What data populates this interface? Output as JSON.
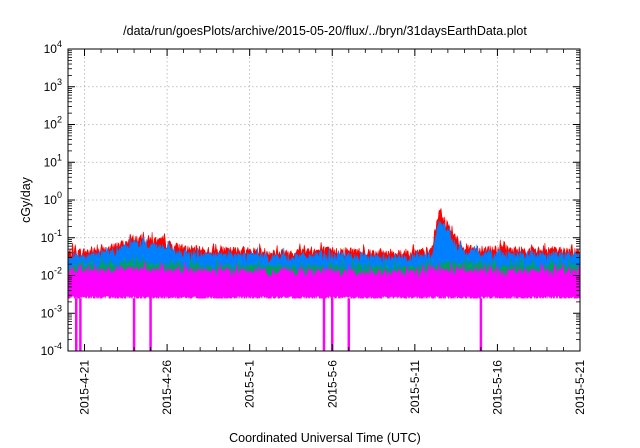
{
  "chart_data": {
    "type": "area",
    "title": "/data/run/goesPlots/archive/2015-05-20/flux/../bryn/31daysEarthData.plot",
    "xlabel": "Coordinated Universal Time (UTC)",
    "ylabel": "cGy/day",
    "yscale": "log",
    "ylim": [
      0.0001,
      10000
    ],
    "xlim": [
      "2015-04-20",
      "2015-05-21"
    ],
    "grid": true,
    "y_ticks": [
      {
        "value": 0.0001,
        "base": "10",
        "exp": "-4"
      },
      {
        "value": 0.001,
        "base": "10",
        "exp": "-3"
      },
      {
        "value": 0.01,
        "base": "10",
        "exp": "-2"
      },
      {
        "value": 0.1,
        "base": "10",
        "exp": "-1"
      },
      {
        "value": 1,
        "base": "10",
        "exp": "0"
      },
      {
        "value": 10,
        "base": "10",
        "exp": "1"
      },
      {
        "value": 100,
        "base": "10",
        "exp": "2"
      },
      {
        "value": 1000,
        "base": "10",
        "exp": "3"
      },
      {
        "value": 10000,
        "base": "10",
        "exp": "4"
      }
    ],
    "x_ticks": [
      {
        "date": "2015-04-21",
        "label": "2015-4-21"
      },
      {
        "date": "2015-04-26",
        "label": "2015-4-26"
      },
      {
        "date": "2015-05-01",
        "label": "2015-5-1"
      },
      {
        "date": "2015-05-06",
        "label": "2015-5-6"
      },
      {
        "date": "2015-05-11",
        "label": "2015-5-11"
      },
      {
        "date": "2015-05-16",
        "label": "2015-5-16"
      },
      {
        "date": "2015-05-21",
        "label": "2015-5-21"
      }
    ],
    "x_minor_ticks": [
      "2015-04-20",
      "2015-04-22",
      "2015-04-23",
      "2015-04-24",
      "2015-04-25",
      "2015-04-27",
      "2015-04-28",
      "2015-04-29",
      "2015-04-30",
      "2015-05-02",
      "2015-05-03",
      "2015-05-04",
      "2015-05-05",
      "2015-05-07",
      "2015-05-08",
      "2015-05-09",
      "2015-05-10",
      "2015-05-12",
      "2015-05-13",
      "2015-05-14",
      "2015-05-15",
      "2015-05-17",
      "2015-05-18",
      "2015-05-19",
      "2015-05-20"
    ],
    "series": [
      {
        "color": "#ff0000",
        "x": [
          "2015-04-20",
          "2015-04-22",
          "2015-04-23",
          "2015-04-24",
          "2015-04-25",
          "2015-04-26",
          "2015-04-27",
          "2015-04-29",
          "2015-05-01",
          "2015-05-03",
          "2015-05-05",
          "2015-05-07",
          "2015-05-09",
          "2015-05-11",
          "2015-05-12",
          "2015-05-12 12:00",
          "2015-05-13",
          "2015-05-13 12:00",
          "2015-05-14",
          "2015-05-16",
          "2015-05-18",
          "2015-05-21"
        ],
        "y": [
          0.04,
          0.045,
          0.06,
          0.095,
          0.09,
          0.07,
          0.05,
          0.045,
          0.045,
          0.04,
          0.045,
          0.045,
          0.04,
          0.04,
          0.045,
          0.5,
          0.2,
          0.09,
          0.055,
          0.05,
          0.045,
          0.045
        ]
      },
      {
        "color": "#0080ff",
        "x": [
          "2015-04-20",
          "2015-04-22",
          "2015-04-23",
          "2015-04-24",
          "2015-04-25",
          "2015-04-26",
          "2015-04-27",
          "2015-04-29",
          "2015-05-01",
          "2015-05-03",
          "2015-05-05",
          "2015-05-07",
          "2015-05-09",
          "2015-05-11",
          "2015-05-12",
          "2015-05-12 12:00",
          "2015-05-13",
          "2015-05-13 12:00",
          "2015-05-14",
          "2015-05-16",
          "2015-05-18",
          "2015-05-21"
        ],
        "y": [
          0.03,
          0.035,
          0.045,
          0.07,
          0.065,
          0.05,
          0.035,
          0.033,
          0.033,
          0.03,
          0.033,
          0.032,
          0.03,
          0.03,
          0.033,
          0.3,
          0.14,
          0.06,
          0.04,
          0.037,
          0.034,
          0.034
        ]
      },
      {
        "color": "#00a060",
        "x": [
          "2015-04-20",
          "2015-04-24",
          "2015-04-26",
          "2015-05-01",
          "2015-05-06",
          "2015-05-11",
          "2015-05-13",
          "2015-05-16",
          "2015-05-21"
        ],
        "y": [
          0.016,
          0.02,
          0.018,
          0.016,
          0.016,
          0.015,
          0.02,
          0.017,
          0.017
        ]
      },
      {
        "color": "#ff00ff",
        "x": [
          "2015-04-20",
          "2015-04-24",
          "2015-04-26",
          "2015-05-01",
          "2015-05-06",
          "2015-05-11",
          "2015-05-13",
          "2015-05-16",
          "2015-05-21"
        ],
        "y": [
          0.012,
          0.014,
          0.013,
          0.012,
          0.012,
          0.011,
          0.013,
          0.012,
          0.012
        ]
      }
    ],
    "baseline": 0.0025,
    "magenta_dropouts": [
      "2015-04-20 12:00",
      "2015-04-20 18:00",
      "2015-04-24",
      "2015-04-25",
      "2015-05-05 12:00",
      "2015-05-06",
      "2015-05-07",
      "2015-05-15"
    ]
  }
}
